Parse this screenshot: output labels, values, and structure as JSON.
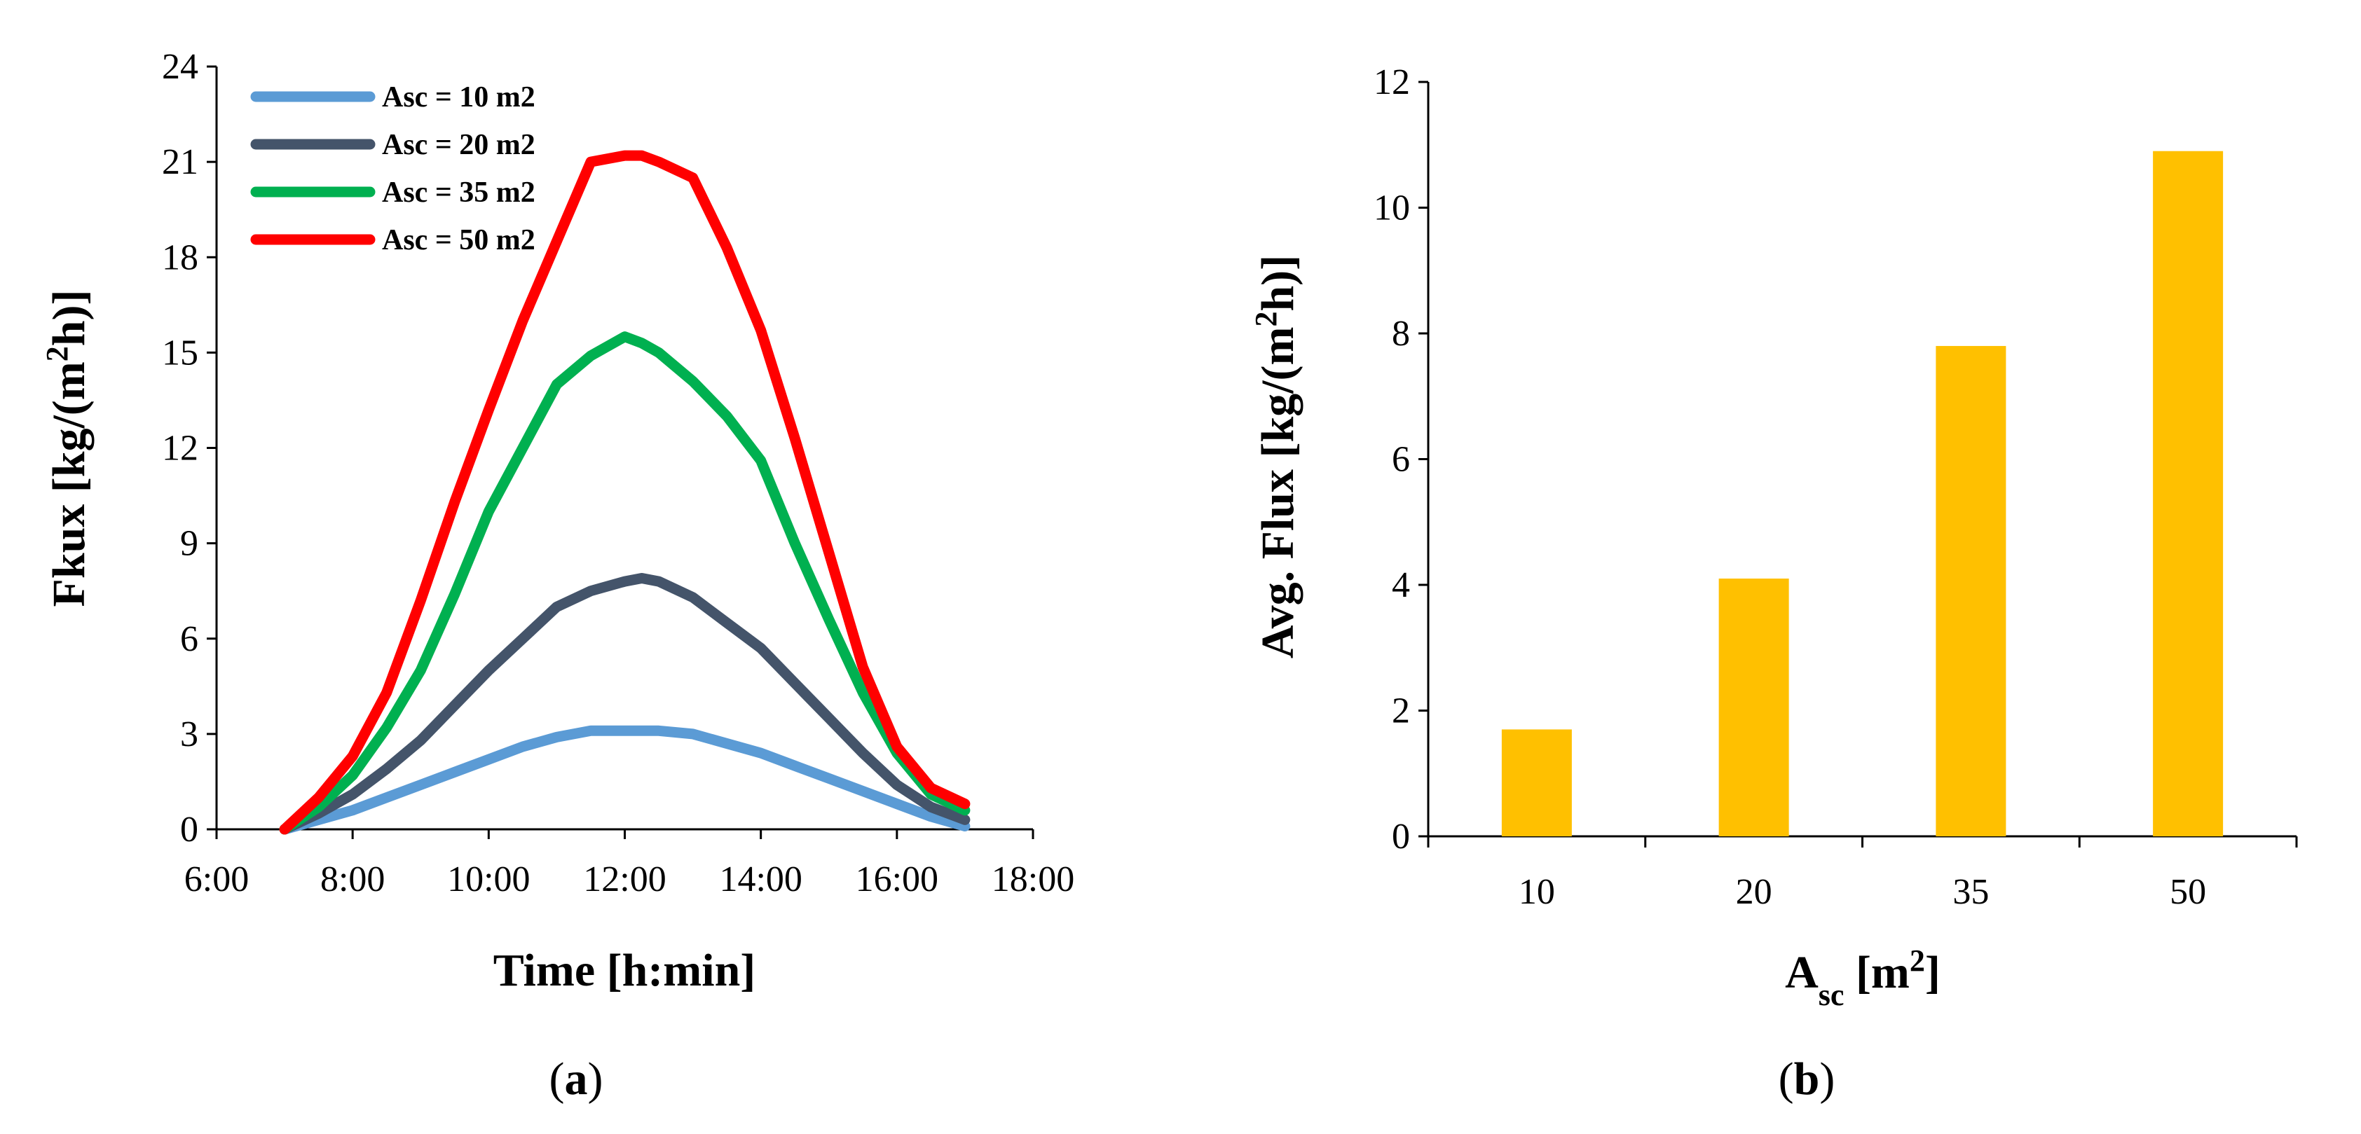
{
  "chart_data": [
    {
      "type": "line",
      "panel_label": "a",
      "xlabel": "Time [h:min]",
      "ylabel": "Fkux [kg/(m²h)]",
      "ylabel_main": "Fkux [kg/(m",
      "ylabel_sup": "2",
      "ylabel_end": "h)]",
      "x_unit": "hours",
      "xlim": [
        6,
        18
      ],
      "ylim": [
        0,
        24
      ],
      "xticks": [
        6,
        8,
        10,
        12,
        14,
        16,
        18
      ],
      "xtick_labels": [
        "6:00",
        "8:00",
        "10:00",
        "12:00",
        "14:00",
        "16:00",
        "18:00"
      ],
      "yticks": [
        0,
        3,
        6,
        9,
        12,
        15,
        18,
        21,
        24
      ],
      "ytick_labels": [
        "0",
        "3",
        "6",
        "9",
        "12",
        "15",
        "18",
        "21",
        "24"
      ],
      "legend_position": "top-left",
      "x": [
        7.0,
        7.5,
        8.0,
        8.5,
        9.0,
        9.5,
        10.0,
        10.5,
        11.0,
        11.5,
        12.0,
        12.25,
        12.5,
        13.0,
        13.5,
        14.0,
        14.5,
        15.0,
        15.5,
        16.0,
        16.5,
        17.0
      ],
      "series": [
        {
          "name": "Asc = 10 m2",
          "color": "#5b9bd5",
          "values": [
            0.0,
            0.3,
            0.6,
            1.0,
            1.4,
            1.8,
            2.2,
            2.6,
            2.9,
            3.1,
            3.1,
            3.1,
            3.1,
            3.0,
            2.7,
            2.4,
            2.0,
            1.6,
            1.2,
            0.8,
            0.4,
            0.1
          ]
        },
        {
          "name": "Asc = 20 m2",
          "color": "#44546a",
          "values": [
            0.0,
            0.5,
            1.1,
            1.9,
            2.8,
            3.9,
            5.0,
            6.0,
            7.0,
            7.5,
            7.8,
            7.9,
            7.8,
            7.3,
            6.5,
            5.7,
            4.6,
            3.5,
            2.4,
            1.4,
            0.7,
            0.3
          ]
        },
        {
          "name": "Asc = 35 m2",
          "color": "#00b050",
          "values": [
            0.0,
            0.7,
            1.7,
            3.2,
            5.0,
            7.4,
            10.0,
            12.0,
            14.0,
            14.9,
            15.5,
            15.3,
            15.0,
            14.1,
            13.0,
            11.6,
            9.0,
            6.6,
            4.3,
            2.4,
            1.1,
            0.6
          ]
        },
        {
          "name": "Asc = 50 m2",
          "color": "#ff0000",
          "values": [
            0.0,
            1.0,
            2.3,
            4.3,
            7.2,
            10.3,
            13.2,
            16.0,
            18.5,
            21.0,
            21.2,
            21.2,
            21.0,
            20.5,
            18.3,
            15.7,
            12.3,
            8.7,
            5.1,
            2.6,
            1.3,
            0.8
          ]
        }
      ]
    },
    {
      "type": "bar",
      "panel_label": "b",
      "xlabel": "Asc [m²]",
      "xlabel_main": "A",
      "xlabel_sub": "sc",
      "xlabel_unit": " [m",
      "xlabel_sup": "2",
      "xlabel_end": "]",
      "ylabel": "Avg. Flux [kg/(m²h)]",
      "ylabel_main": "Avg. Flux [kg/(m",
      "ylabel_sup": "2",
      "ylabel_end": "h)]",
      "ylim": [
        0,
        12
      ],
      "yticks": [
        0,
        2,
        4,
        6,
        8,
        10,
        12
      ],
      "ytick_labels": [
        "0",
        "2",
        "4",
        "6",
        "8",
        "10",
        "12"
      ],
      "categories": [
        "10",
        "20",
        "35",
        "50"
      ],
      "values": [
        1.7,
        4.1,
        7.8,
        10.9
      ],
      "bar_color": "#ffc000"
    }
  ]
}
